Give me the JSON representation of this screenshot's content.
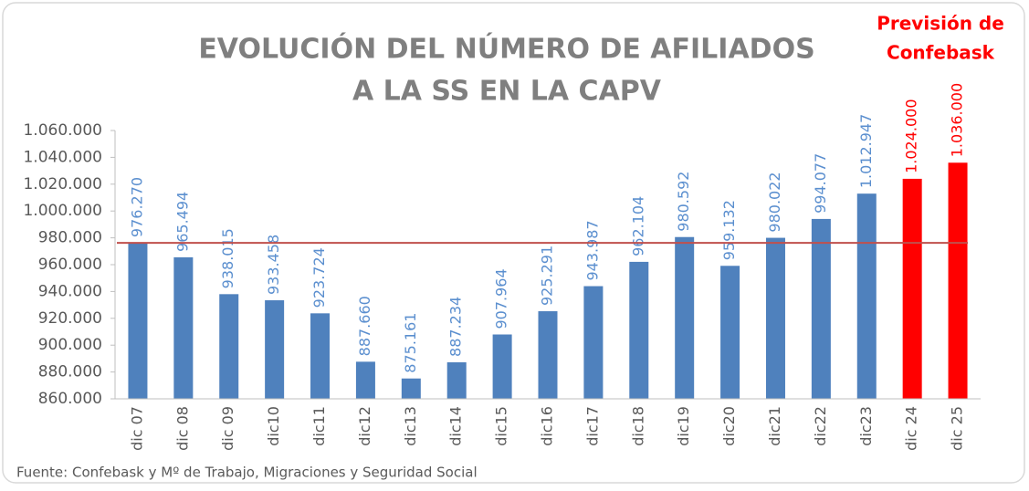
{
  "chart_data": {
    "type": "bar",
    "title": [
      "EVOLUCIÓN DEL NÚMERO DE AFILIADOS",
      "A LA SS EN LA CAPV"
    ],
    "annotation": [
      "Previsión de",
      "Confebask"
    ],
    "source": "Fuente: Confebask y Mº de Trabajo, Migraciones y Seguridad Social",
    "categories": [
      "dic 07",
      "dic 08",
      "dic 09",
      "dic10",
      "dic11",
      "dic12",
      "dic13",
      "dic14",
      "dic15",
      "dic16",
      "dic17",
      "dic18",
      "dic19",
      "dic20",
      "dic21",
      "dic22",
      "dic23",
      "dic 24",
      "dic 25"
    ],
    "values": [
      976270,
      965494,
      938015,
      933458,
      923724,
      887660,
      875161,
      887234,
      907964,
      925291,
      943987,
      962104,
      980592,
      959132,
      980022,
      994077,
      1012947,
      1024000,
      1036000
    ],
    "value_labels": [
      "976.270",
      "965.494",
      "938.015",
      "933.458",
      "923.724",
      "887.660",
      "875.161",
      "887.234",
      "907.964",
      "925.291",
      "943.987",
      "962.104",
      "980.592",
      "959.132",
      "980.022",
      "994.077",
      "1.012.947",
      "1.024.000",
      "1.036.000"
    ],
    "colors": [
      "#4f81bd",
      "#4f81bd",
      "#4f81bd",
      "#4f81bd",
      "#4f81bd",
      "#4f81bd",
      "#4f81bd",
      "#4f81bd",
      "#4f81bd",
      "#4f81bd",
      "#4f81bd",
      "#4f81bd",
      "#4f81bd",
      "#4f81bd",
      "#4f81bd",
      "#4f81bd",
      "#4f81bd",
      "#ff0000",
      "#ff0000"
    ],
    "reference_line": {
      "value": 976270,
      "color": "#c0504d"
    },
    "ylim": [
      860000,
      1060000
    ],
    "yticks": [
      {
        "value": 860000,
        "label": "860.000"
      },
      {
        "value": 880000,
        "label": "880.000"
      },
      {
        "value": 900000,
        "label": "900.000"
      },
      {
        "value": 920000,
        "label": "920.000"
      },
      {
        "value": 940000,
        "label": "940.000"
      },
      {
        "value": 960000,
        "label": "960.000"
      },
      {
        "value": 980000,
        "label": "980.000"
      },
      {
        "value": 1000000,
        "label": "1.000.000"
      },
      {
        "value": 1020000,
        "label": "1.020.000"
      },
      {
        "value": 1040000,
        "label": "1.040.000"
      },
      {
        "value": 1060000,
        "label": "1.060.000"
      }
    ],
    "grid": false
  }
}
